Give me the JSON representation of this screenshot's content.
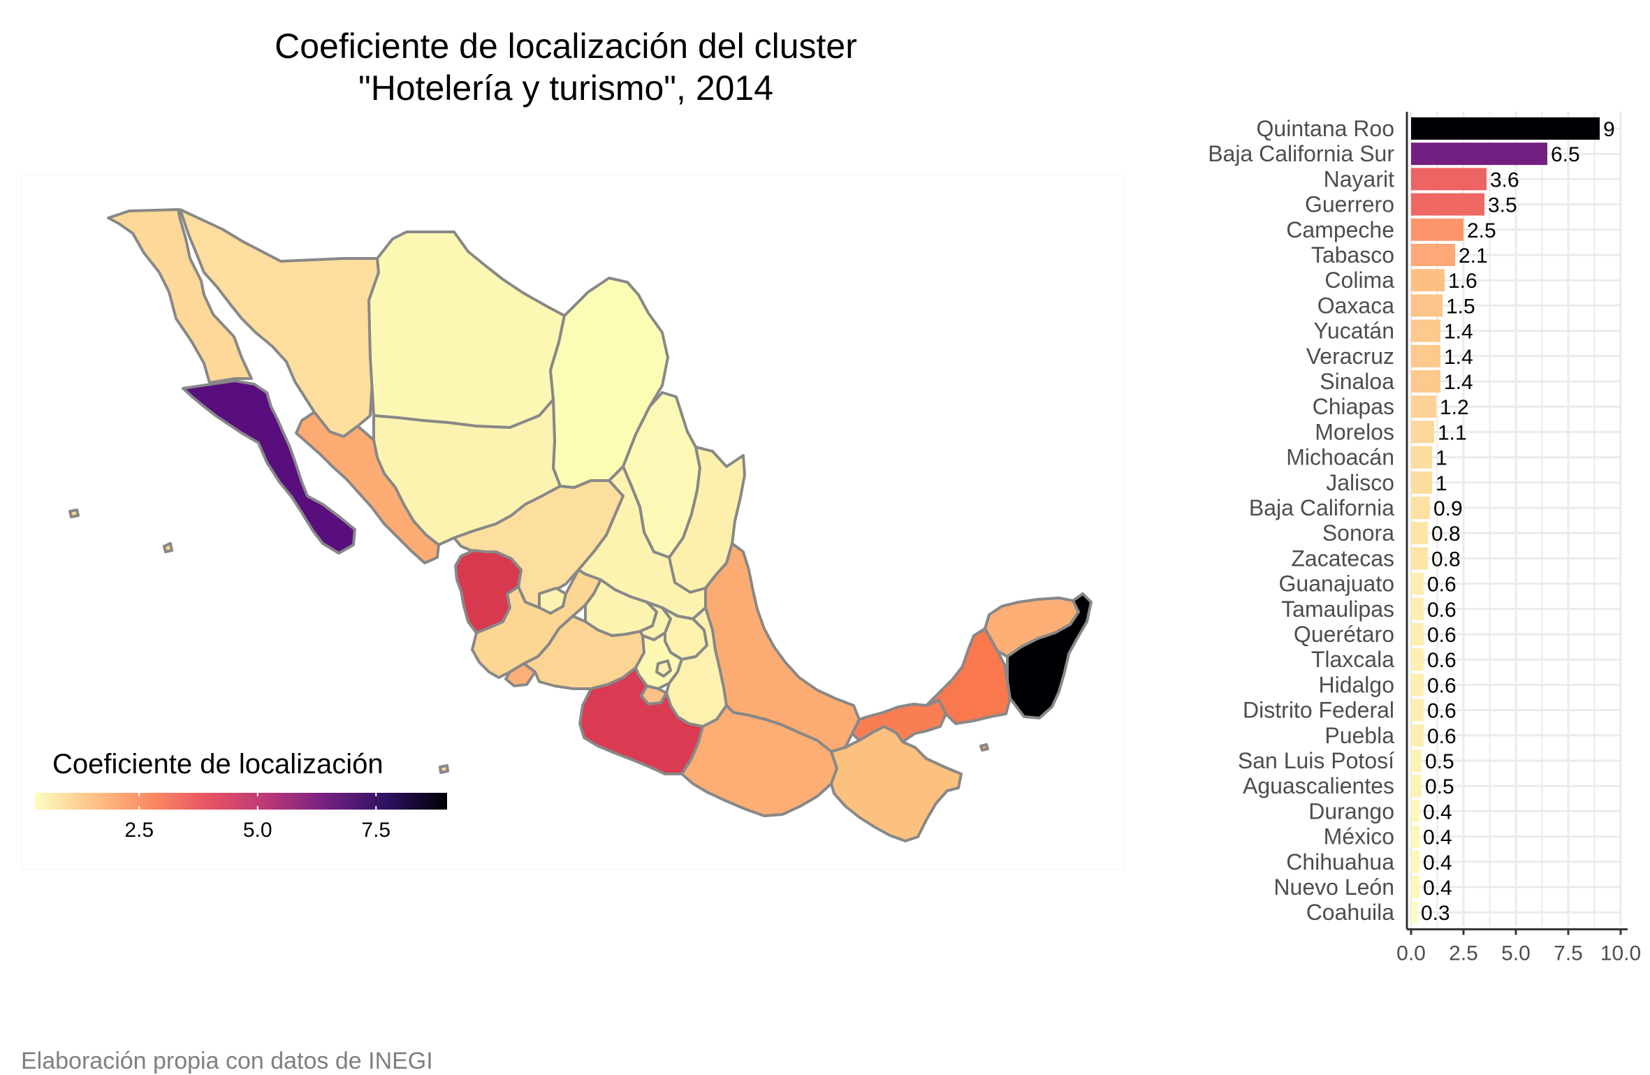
{
  "title_line1": "Coeficiente de localización del cluster",
  "title_line2": "\"Hotelería y turismo\", 2014",
  "caption": "Elaboración propia con datos de INEGI",
  "legend": {
    "title": "Coeficiente de localización",
    "ticks": [
      "2.5",
      "5.0",
      "7.5"
    ],
    "tick_values": [
      2.5,
      5.0,
      7.5
    ],
    "range": [
      0.3,
      9.0
    ],
    "palette": [
      "#fcfdbf",
      "#fec287",
      "#fb8861",
      "#e65164",
      "#b73779",
      "#721f81",
      "#2c115f",
      "#000004"
    ]
  },
  "chart_data": {
    "type": "bar",
    "orientation": "horizontal",
    "categories": [
      "Quintana Roo",
      "Baja California Sur",
      "Nayarit",
      "Guerrero",
      "Campeche",
      "Tabasco",
      "Colima",
      "Oaxaca",
      "Yucatán",
      "Veracruz",
      "Sinaloa",
      "Chiapas",
      "Morelos",
      "Michoacán",
      "Jalisco",
      "Baja California",
      "Sonora",
      "Zacatecas",
      "Guanajuato",
      "Tamaulipas",
      "Querétaro",
      "Tlaxcala",
      "Hidalgo",
      "Distrito Federal",
      "Puebla",
      "San Luis Potosí",
      "Aguascalientes",
      "Durango",
      "México",
      "Chihuahua",
      "Nuevo León",
      "Coahuila"
    ],
    "values": [
      9.0,
      6.5,
      3.6,
      3.5,
      2.5,
      2.1,
      1.6,
      1.5,
      1.4,
      1.4,
      1.4,
      1.2,
      1.1,
      1.0,
      1.0,
      0.9,
      0.8,
      0.8,
      0.6,
      0.6,
      0.6,
      0.6,
      0.6,
      0.6,
      0.6,
      0.5,
      0.5,
      0.4,
      0.4,
      0.4,
      0.4,
      0.3
    ],
    "labels": [
      "9",
      "6.5",
      "3.6",
      "3.5",
      "2.5",
      "2.1",
      "1.6",
      "1.5",
      "1.4",
      "1.4",
      "1.4",
      "1.2",
      "1.1",
      "1",
      "1",
      "0.9",
      "0.8",
      "0.8",
      "0.6",
      "0.6",
      "0.6",
      "0.6",
      "0.6",
      "0.6",
      "0.6",
      "0.5",
      "0.5",
      "0.4",
      "0.4",
      "0.4",
      "0.4",
      "0.3"
    ],
    "x_ticks": [
      "0.0",
      "2.5",
      "5.0",
      "7.5",
      "10.0"
    ],
    "x_tick_values": [
      0,
      2.5,
      5,
      7.5,
      10
    ],
    "xlim": [
      0,
      10
    ],
    "grid": true
  }
}
